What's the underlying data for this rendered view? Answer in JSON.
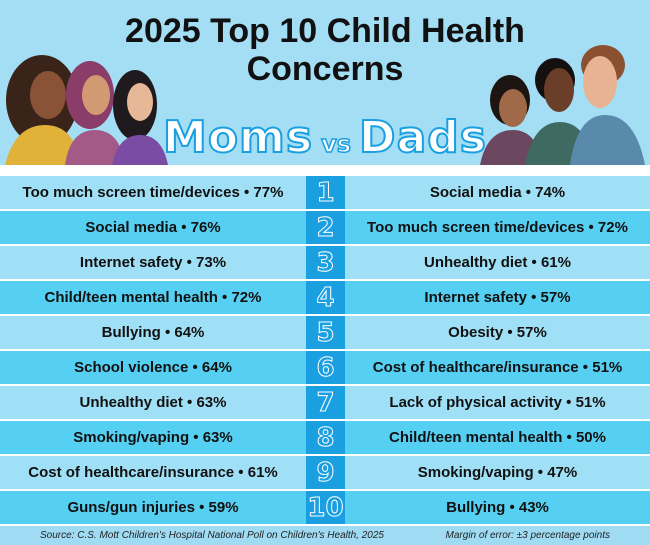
{
  "title": "2025 Top 10 Child Health Concerns",
  "subtitle": {
    "left": "Moms",
    "vs": "vs",
    "right": "Dads"
  },
  "colors": {
    "number_column": "#1a9fe0",
    "row_light": "#a0e0f6",
    "row_dark": "#56d0f2",
    "background": "#a3def5"
  },
  "rows": [
    {
      "rank": "1",
      "moms": "Too much screen time/devices • 77%",
      "dads": "Social media • 74%"
    },
    {
      "rank": "2",
      "moms": "Social media • 76%",
      "dads": "Too much screen time/devices • 72%"
    },
    {
      "rank": "3",
      "moms": "Internet safety • 73%",
      "dads": "Unhealthy diet • 61%"
    },
    {
      "rank": "4",
      "moms": "Child/teen mental health • 72%",
      "dads": "Internet safety • 57%"
    },
    {
      "rank": "5",
      "moms": "Bullying • 64%",
      "dads": "Obesity • 57%"
    },
    {
      "rank": "6",
      "moms": "School violence • 64%",
      "dads": "Cost of healthcare/insurance • 51%"
    },
    {
      "rank": "7",
      "moms": "Unhealthy diet • 63%",
      "dads": "Lack of physical activity • 51%"
    },
    {
      "rank": "8",
      "moms": "Smoking/vaping • 63%",
      "dads": "Child/teen mental health • 50%"
    },
    {
      "rank": "9",
      "moms": "Cost of healthcare/insurance • 61%",
      "dads": "Smoking/vaping • 47%"
    },
    {
      "rank": "10",
      "moms": "Guns/gun injuries • 59%",
      "dads": "Bullying • 43%"
    }
  ],
  "footer": {
    "source": "Source: C.S. Mott Children's Hospital National Poll on Children's Health, 2025",
    "margin": "Margin of error: ±3 percentage points"
  }
}
